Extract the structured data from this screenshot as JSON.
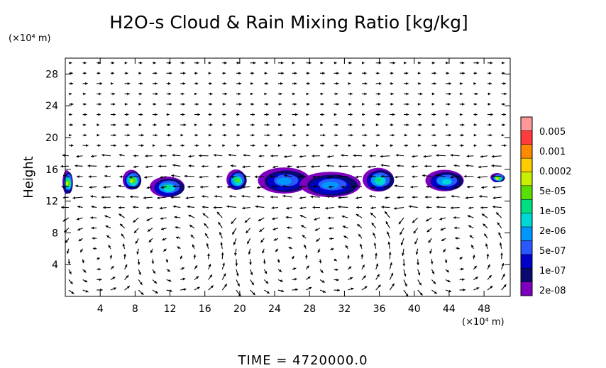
{
  "chart_data": {
    "type": "heatmap",
    "title": "H2O-s Cloud & Rain Mixing Ratio [kg/kg]",
    "ylabel": "Height",
    "y_unit": "(×10⁴ m)",
    "x_unit": "(×10⁴ m)",
    "xlim": [
      0,
      51
    ],
    "ylim": [
      0,
      30
    ],
    "x_ticks": [
      "4",
      "8",
      "12",
      "16",
      "20",
      "24",
      "28",
      "32",
      "36",
      "40",
      "44",
      "48"
    ],
    "x_tick_values": [
      4,
      8,
      12,
      16,
      20,
      24,
      28,
      32,
      36,
      40,
      44,
      48
    ],
    "y_ticks": [
      "4",
      "8",
      "12",
      "16",
      "20",
      "24",
      "28"
    ],
    "y_tick_values": [
      4,
      8,
      12,
      16,
      20,
      24,
      28
    ],
    "colorbar": {
      "labels": [
        "0.005",
        "0.001",
        "0.0002",
        "5e-05",
        "1e-05",
        "2e-06",
        "5e-07",
        "1e-07",
        "2e-08"
      ],
      "colors": [
        "#ff9999",
        "#ff3b3b",
        "#ff8a00",
        "#ffcc00",
        "#c8f000",
        "#5ae000",
        "#00e080",
        "#00d8d8",
        "#0096ff",
        "#2a58ff",
        "#0000c8",
        "#0a0a6e",
        "#8000c0"
      ]
    },
    "cloud_cells": [
      {
        "x": 0.3,
        "y": 14.3,
        "w": 1.0,
        "h": 3.0,
        "level": 9
      },
      {
        "x": 7.7,
        "y": 14.6,
        "w": 2.0,
        "h": 2.5,
        "level": 9
      },
      {
        "x": 11.8,
        "y": 13.7,
        "w": 4.0,
        "h": 2.6,
        "level": 7
      },
      {
        "x": 19.7,
        "y": 14.6,
        "w": 2.2,
        "h": 2.6,
        "level": 8
      },
      {
        "x": 25.2,
        "y": 14.5,
        "w": 6.0,
        "h": 3.3,
        "level": 5
      },
      {
        "x": 30.5,
        "y": 14.0,
        "w": 7.0,
        "h": 3.2,
        "level": 5
      },
      {
        "x": 36.0,
        "y": 14.6,
        "w": 3.6,
        "h": 3.0,
        "level": 7
      },
      {
        "x": 43.6,
        "y": 14.5,
        "w": 4.4,
        "h": 2.7,
        "level": 6
      },
      {
        "x": 49.6,
        "y": 14.9,
        "w": 1.5,
        "h": 1.1,
        "level": 9
      }
    ],
    "grid": false,
    "overlay": "wind vectors"
  },
  "time_label": "TIME  =  4720000.0"
}
